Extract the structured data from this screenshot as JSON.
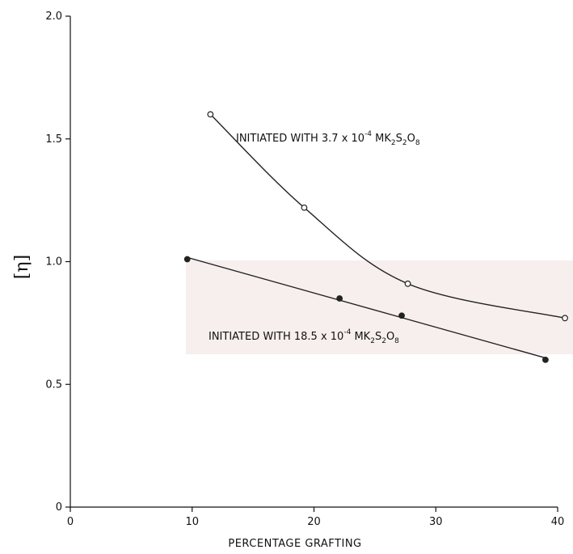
{
  "chart_data": {
    "type": "line",
    "xlabel": "PERCENTAGE GRAFTING",
    "ylabel": "[η]",
    "xlim": [
      0,
      40
    ],
    "ylim": [
      0,
      2.0
    ],
    "x_ticks": [
      "0",
      "10",
      "20",
      "30",
      "40"
    ],
    "y_ticks": [
      "0",
      "0.5",
      "1.0",
      "1.5",
      "2.0"
    ],
    "grid": false,
    "series": [
      {
        "name": "INITIATED WITH 3.7 x 10-4 MK2S2O8",
        "marker": "open-circle",
        "x": [
          11.5,
          19.2,
          27.7,
          40.6
        ],
        "y": [
          1.6,
          1.22,
          0.91,
          0.77
        ]
      },
      {
        "name": "INITIATED WITH 18.5 x 10-4 MK2S2O8",
        "marker": "filled-circle",
        "x": [
          9.6,
          22.1,
          27.2,
          39.0
        ],
        "y": [
          1.01,
          0.85,
          0.78,
          0.6
        ]
      }
    ],
    "annotations": [
      {
        "id": "a1",
        "prefix": "INITIATED WITH 3.7 x 10",
        "exp": "-4",
        "mid": " MK",
        "sub1": "2",
        "s": "S",
        "sub2": "2",
        "o": "O",
        "sub3": "8"
      },
      {
        "id": "a2",
        "prefix": "INITIATED WITH 18.5 x 10",
        "exp": "-4",
        "mid": " MK",
        "sub1": "2",
        "s": "S",
        "sub2": "2",
        "o": "O",
        "sub3": "8"
      }
    ]
  }
}
